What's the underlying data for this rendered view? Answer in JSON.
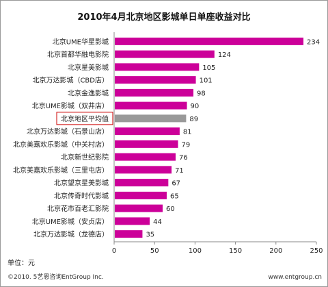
{
  "chart_data": {
    "type": "bar",
    "orientation": "horizontal",
    "title": "2010年4月北京地区影城单日单座收益对比",
    "categories": [
      "北京UME华星影城",
      "北京首都华融电影院",
      "北京星美影城",
      "北京万达影城（CBD店）",
      "北京金逸影城",
      "北京UME影城（双井店）",
      "北京地区平均值",
      "北京万达影城（石景山店）",
      "北京美嘉欢乐影城（中关村店）",
      "北京新世纪影院",
      "北京美嘉欢乐影城（三里屯店）",
      "北京望京星美影城",
      "北京传奇时代影城",
      "北京花市百老汇影院",
      "北京UME影城（安贞店）",
      "北京万达影城（龙德店）"
    ],
    "values": [
      234,
      124,
      105,
      101,
      98,
      90,
      89,
      81,
      79,
      76,
      71,
      67,
      65,
      60,
      44,
      35
    ],
    "highlight_index": 6,
    "bar_color": "#cc0099",
    "highlight_color": "#999999",
    "highlight_box_color": "#cc0000",
    "xlim": [
      0,
      250
    ],
    "xticks": [
      0,
      50,
      100,
      150,
      200,
      250
    ],
    "unit_label": "单位：元"
  },
  "footer": {
    "copyright": "©2010. 5艺恩咨询EntGroup Inc.",
    "website": "www.entgroup.cn"
  }
}
